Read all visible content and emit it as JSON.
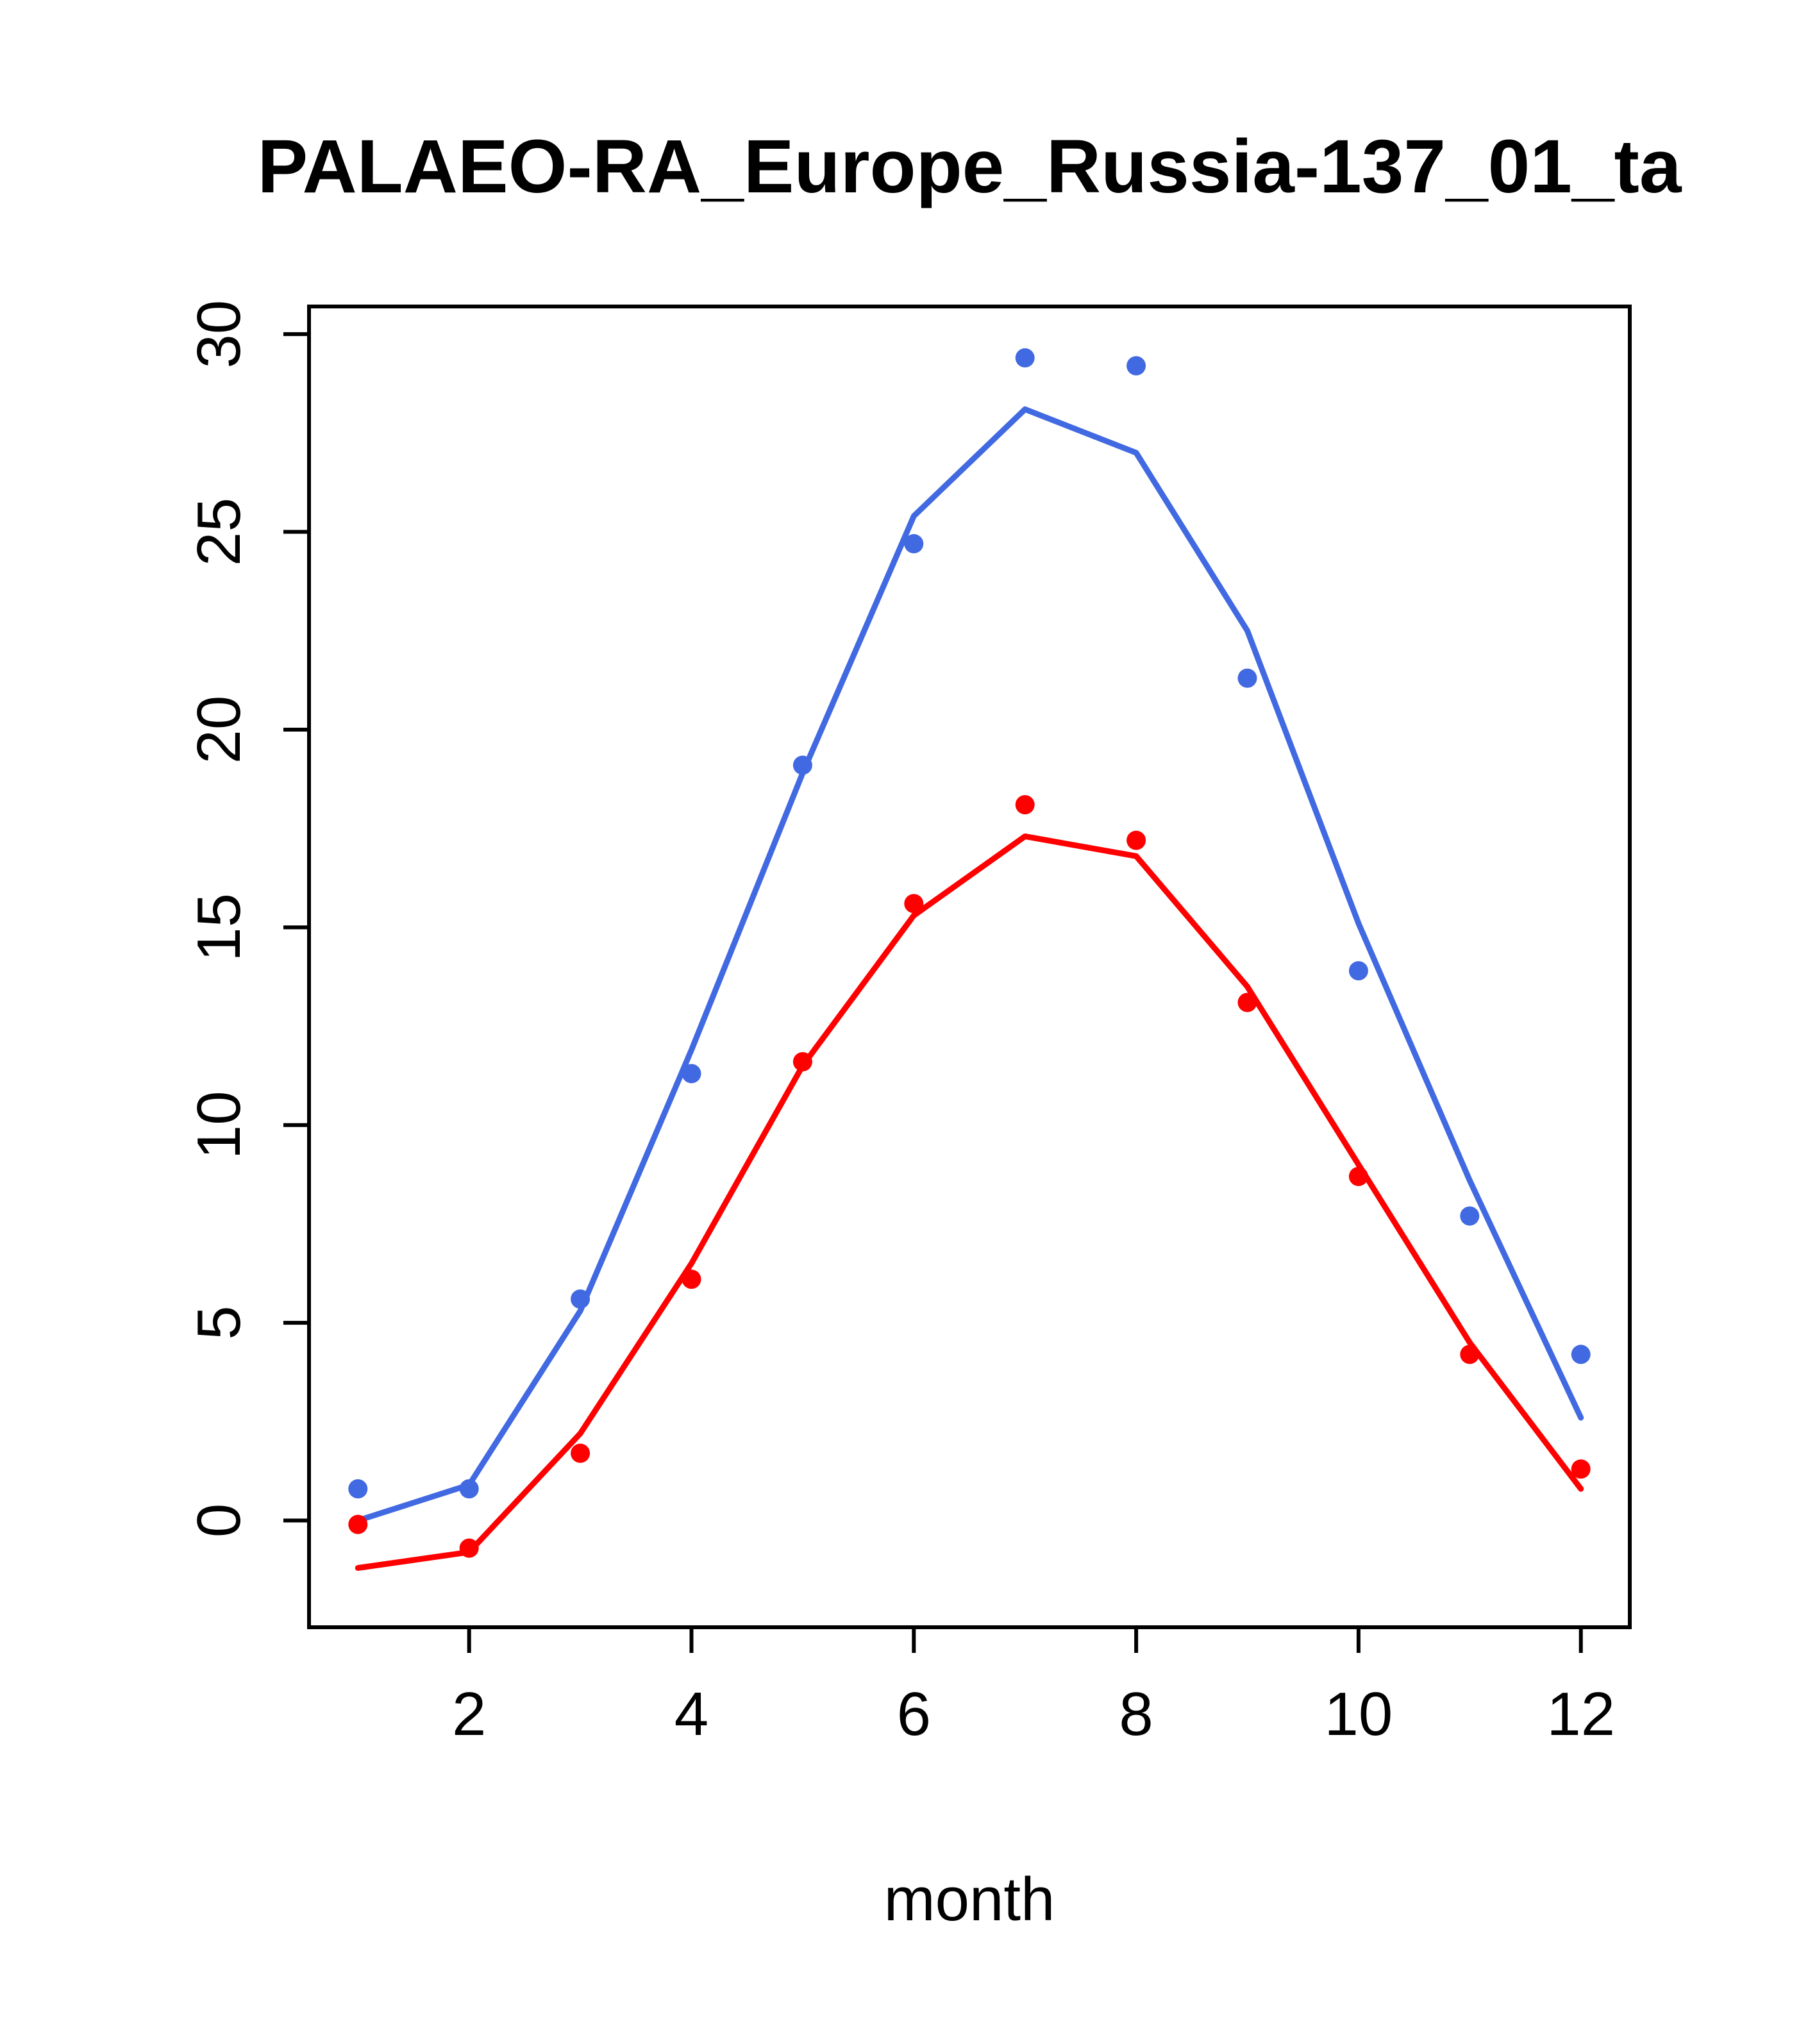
{
  "page": {
    "background": "#ffffff"
  },
  "chart_data": {
    "type": "line",
    "title": "PALAEO-RA_Europe_Russia-137_01_ta",
    "xlabel": "month",
    "ylabel": "",
    "x": [
      1,
      2,
      3,
      4,
      5,
      6,
      7,
      8,
      9,
      10,
      11,
      12
    ],
    "series": [
      {
        "name": "blue-line-series",
        "style": "line",
        "color": "#4169E1",
        "values": [
          0.0,
          0.9,
          5.3,
          11.9,
          18.9,
          25.4,
          28.1,
          27.0,
          22.5,
          15.1,
          8.6,
          2.6
        ]
      },
      {
        "name": "red-line-series",
        "style": "line",
        "color": "#FF0000",
        "values": [
          -1.2,
          -0.8,
          2.2,
          6.5,
          11.5,
          15.3,
          17.3,
          16.8,
          13.5,
          9.0,
          4.5,
          0.8
        ]
      },
      {
        "name": "blue-point-series",
        "style": "points",
        "color": "#4169E1",
        "values": [
          0.8,
          0.8,
          5.6,
          11.3,
          19.1,
          24.7,
          29.4,
          29.2,
          21.3,
          13.9,
          7.7,
          4.2
        ]
      },
      {
        "name": "red-point-series",
        "style": "points",
        "color": "#FF0000",
        "values": [
          -0.1,
          -0.7,
          1.7,
          6.1,
          11.6,
          15.6,
          18.1,
          17.2,
          13.1,
          8.7,
          4.2,
          1.3
        ]
      }
    ],
    "xticks": [
      2,
      4,
      6,
      8,
      10,
      12
    ],
    "yticks": [
      0,
      5,
      10,
      15,
      20,
      25,
      30
    ],
    "xlim": [
      0.56,
      12.44
    ],
    "ylim": [
      -2.7,
      30.7
    ],
    "grid": false,
    "legend": null,
    "axis_color": "#000000"
  }
}
